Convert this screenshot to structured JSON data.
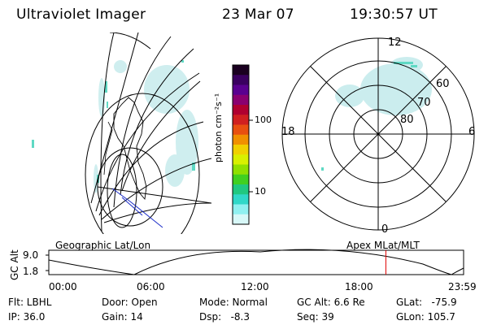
{
  "header": {
    "instrument": "Ultraviolet Imager",
    "date": "23 Mar 07",
    "time": "19:30:57 UT"
  },
  "colorbar": {
    "unit_label": "photon cm⁻²s⁻¹",
    "ticks": [
      "100",
      "10"
    ],
    "colors": [
      "#1a0020",
      "#3a0060",
      "#5a0090",
      "#8a0070",
      "#b00030",
      "#d02020",
      "#e85010",
      "#f09000",
      "#f0d000",
      "#d8f000",
      "#90e000",
      "#40d020",
      "#20c880",
      "#30d8c8",
      "#90f0f0",
      "#d8f8f8"
    ]
  },
  "polar_plot": {
    "mlt_labels": [
      "12",
      "18",
      "6",
      "0"
    ],
    "mlat_labels": [
      "60",
      "70",
      "80"
    ]
  },
  "orbit_panel": {
    "left_title": "Geographic Lat/Lon",
    "right_title": "Apex MLat/MLT",
    "ylabel": "GC Alt",
    "ytick_top": "9.0",
    "ytick_bottom": "1.8",
    "xticks": [
      "00:00",
      "06:00",
      "12:00",
      "18:00",
      "23:59"
    ],
    "current_time_fraction": 0.8126,
    "marker_color": "#e00000"
  },
  "info": {
    "flt": "Flt: LBHL",
    "ip": "IP: 36.0",
    "door": "Door: Open",
    "gain": "Gain: 14",
    "mode": "Mode: Normal",
    "dsp": "Dsp:   -8.3",
    "gcalt": "GC Alt: 6.6 Re",
    "seq": "Seq: 39",
    "glat": "GLat:   -75.9",
    "glon": "GLon: 105.7"
  }
}
